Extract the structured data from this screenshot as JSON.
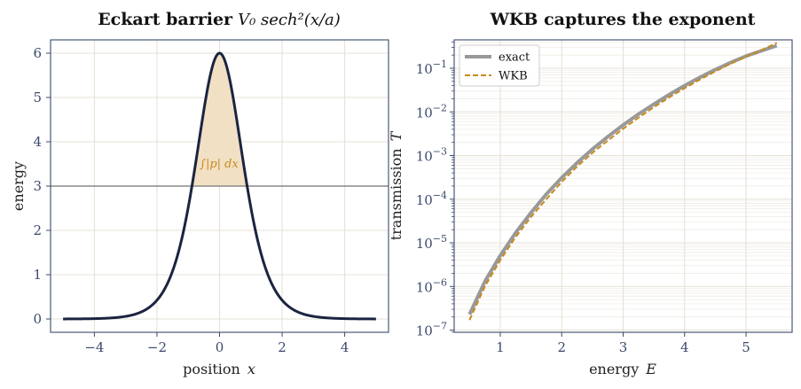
{
  "chart_data": [
    {
      "type": "line",
      "title": "Eckart barrier",
      "title_math": "V₀ sech²(x/a)",
      "xlabel": "position",
      "xlabel_var": "x",
      "ylabel": "energy",
      "xlim": [
        -5.4,
        5.4
      ],
      "ylim": [
        -0.3,
        6.3
      ],
      "xticks": [
        -4,
        -2,
        0,
        2,
        4
      ],
      "xtick_labels": [
        "−4",
        "−2",
        "0",
        "2",
        "4"
      ],
      "yticks": [
        0,
        1,
        2,
        3,
        4,
        5,
        6
      ],
      "ytick_labels": [
        "0",
        "1",
        "2",
        "3",
        "4",
        "5",
        "6"
      ],
      "grid": true,
      "barrier": {
        "V0": 6,
        "a": 1,
        "x_range": [
          -5,
          5
        ]
      },
      "energy_line": 3,
      "shaded_region": {
        "from_x": -0.881,
        "to_x": 0.881,
        "annotation": "∫|p| dx"
      },
      "colors": {
        "curve": "#1b2440",
        "energy_line": "#888888",
        "shade": "#f1e0c4",
        "annotation": "#c98a1a"
      }
    },
    {
      "type": "line",
      "title": "WKB captures the exponent",
      "xlabel": "energy",
      "xlabel_var": "E",
      "ylabel": "transmission",
      "ylabel_var": "T",
      "yscale": "log",
      "xlim": [
        0.25,
        5.75
      ],
      "ylim_exp": [
        -7.05,
        -0.35
      ],
      "xticks": [
        1,
        2,
        3,
        4,
        5
      ],
      "xtick_labels": [
        "1",
        "2",
        "3",
        "4",
        "5"
      ],
      "yticks_exp": [
        -7,
        -6,
        -5,
        -4,
        -3,
        -2,
        -1
      ],
      "ytick_bases": [
        "10",
        "10",
        "10",
        "10",
        "10",
        "10",
        "10"
      ],
      "ytick_exps": [
        "−7",
        "−6",
        "−5",
        "−4",
        "−3",
        "−2",
        "−1"
      ],
      "grid": true,
      "legend_position": "top-left",
      "series": [
        {
          "name": "exact",
          "style": "solid",
          "color": "#999999",
          "x": [
            0.5,
            0.75,
            1.0,
            1.25,
            1.5,
            1.75,
            2.0,
            2.25,
            2.5,
            2.75,
            3.0,
            3.25,
            3.5,
            3.75,
            4.0,
            4.25,
            4.5,
            4.75,
            5.0,
            5.25,
            5.5
          ],
          "y": [
            2.3e-07,
            1.3e-06,
            5.1e-06,
            1.7e-05,
            4.9e-05,
            0.00013,
            0.00031,
            0.00068,
            0.0014,
            0.0027,
            0.005,
            0.0089,
            0.015,
            0.025,
            0.04,
            0.062,
            0.093,
            0.135,
            0.19,
            0.25,
            0.33
          ]
        },
        {
          "name": "WKB",
          "style": "dashed",
          "color": "#c98a1a",
          "x": [
            0.5,
            0.75,
            1.0,
            1.25,
            1.5,
            1.75,
            2.0,
            2.25,
            2.5,
            2.75,
            3.0,
            3.25,
            3.5,
            3.75,
            4.0,
            4.25,
            4.5,
            4.75,
            5.0,
            5.25,
            5.5
          ],
          "y": [
            1.7e-07,
            1e-06,
            4e-06,
            1.35e-05,
            3.9e-05,
            0.0001,
            0.00025,
            0.00056,
            0.00115,
            0.0022,
            0.0041,
            0.0074,
            0.0128,
            0.0215,
            0.035,
            0.055,
            0.085,
            0.127,
            0.185,
            0.26,
            0.38
          ]
        }
      ]
    }
  ]
}
